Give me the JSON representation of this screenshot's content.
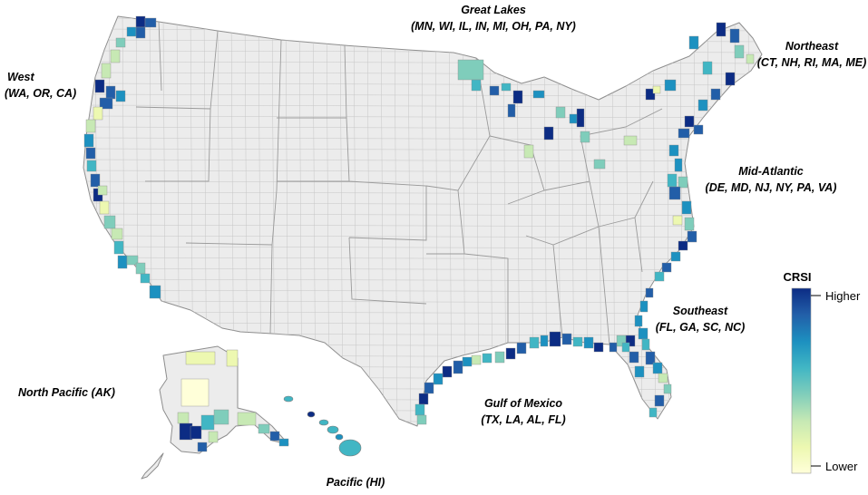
{
  "regions": {
    "west": {
      "name": "West",
      "states": "(WA, OR, CA)"
    },
    "great_lakes": {
      "name": "Great Lakes",
      "states": "(MN, WI, IL, IN, MI, OH, PA, NY)"
    },
    "northeast": {
      "name": "Northeast",
      "states": "(CT, NH, RI, MA, ME)"
    },
    "mid_atlantic": {
      "name": "Mid-Atlantic",
      "states": "(DE, MD, NJ, NY, PA, VA)"
    },
    "southeast": {
      "name": "Southeast",
      "states": "(FL, GA, SC, NC)"
    },
    "gulf": {
      "name": "Gulf of Mexico",
      "states": "(TX, LA, AL, FL)"
    },
    "north_pacific": {
      "name": "North Pacific (AK)"
    },
    "pacific": {
      "name": "Pacific (HI)"
    }
  },
  "legend": {
    "title": "CRSI",
    "high_label": "Higher",
    "low_label": "Lower",
    "colors": [
      "#ffffd9",
      "#edf8b1",
      "#c7e9b4",
      "#7fcdbb",
      "#41b6c4",
      "#1d91c0",
      "#225ea8",
      "#0c2c84"
    ]
  },
  "scale": {
    "levels": 8
  }
}
